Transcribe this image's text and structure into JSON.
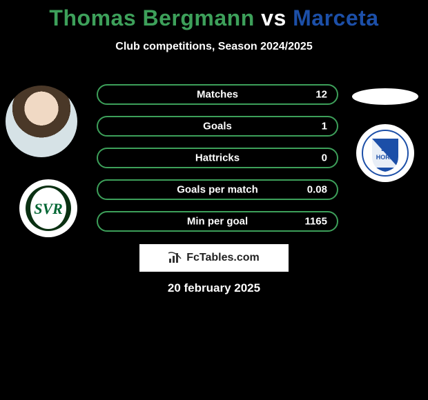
{
  "colors": {
    "left_accent": "#3da05a",
    "right_accent": "#1c4fa8",
    "title_text_shadow": "#000000"
  },
  "title": {
    "left_name": "Thomas Bergmann",
    "vs": "vs",
    "right_name": "Marceta"
  },
  "subtitle": "Club competitions, Season 2024/2025",
  "stats": [
    {
      "label": "Matches",
      "value": "12"
    },
    {
      "label": "Goals",
      "value": "1"
    },
    {
      "label": "Hattricks",
      "value": "0"
    },
    {
      "label": "Goals per match",
      "value": "0.08"
    },
    {
      "label": "Min per goal",
      "value": "1165"
    }
  ],
  "clubs": {
    "left": {
      "name": "sv-ried-logo",
      "text": "SVR"
    },
    "right": {
      "name": "sv-horn-logo",
      "text": "SV HORN"
    }
  },
  "watermark": {
    "icon": "bar-chart-icon",
    "text": "FcTables.com"
  },
  "date": "20 february 2025"
}
